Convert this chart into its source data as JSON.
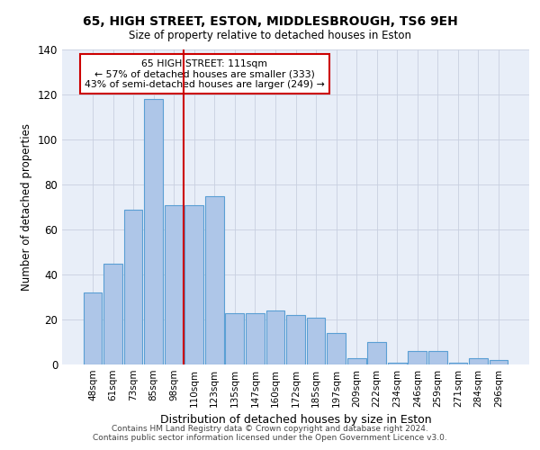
{
  "title1": "65, HIGH STREET, ESTON, MIDDLESBROUGH, TS6 9EH",
  "title2": "Size of property relative to detached houses in Eston",
  "xlabel": "Distribution of detached houses by size in Eston",
  "ylabel": "Number of detached properties",
  "categories": [
    "48sqm",
    "61sqm",
    "73sqm",
    "85sqm",
    "98sqm",
    "110sqm",
    "123sqm",
    "135sqm",
    "147sqm",
    "160sqm",
    "172sqm",
    "185sqm",
    "197sqm",
    "209sqm",
    "222sqm",
    "234sqm",
    "246sqm",
    "259sqm",
    "271sqm",
    "284sqm",
    "296sqm"
  ],
  "values": [
    32,
    45,
    69,
    118,
    71,
    71,
    75,
    23,
    23,
    24,
    22,
    21,
    14,
    3,
    10,
    1,
    6,
    6,
    1,
    3,
    2
  ],
  "bar_color": "#aec6e8",
  "bar_edge_color": "#5a9fd4",
  "vline_color": "#cc0000",
  "vline_x_index": 4.5,
  "box_text_line1": "65 HIGH STREET: 111sqm",
  "box_text_line2": "← 57% of detached houses are smaller (333)",
  "box_text_line3": "43% of semi-detached houses are larger (249) →",
  "box_color": "white",
  "box_edge_color": "#cc0000",
  "ylim": [
    0,
    140
  ],
  "yticks": [
    0,
    20,
    40,
    60,
    80,
    100,
    120,
    140
  ],
  "footnote1": "Contains HM Land Registry data © Crown copyright and database right 2024.",
  "footnote2": "Contains public sector information licensed under the Open Government Licence v3.0.",
  "bg_color": "#e8eef8",
  "plot_bg_color": "white",
  "grid_color": "#c8d0e0"
}
